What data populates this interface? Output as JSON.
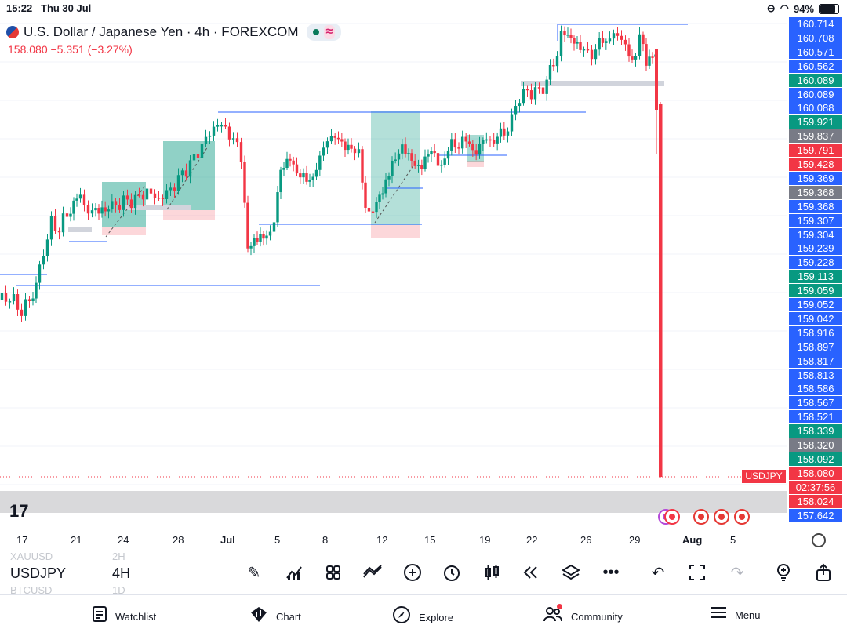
{
  "status_bar": {
    "time": "15:22",
    "date": "Thu 30 Jul",
    "battery": "94%",
    "battery_level": 0.94
  },
  "header": {
    "title": "U.S. Dollar / Japanese Yen · 4h · FOREXCOM",
    "price": "158.080",
    "change": "−5.351 (−3.27%)"
  },
  "colors": {
    "up": "#089981",
    "down": "#f23645",
    "line": "#2962ff",
    "axis_blue": "#2962ff",
    "axis_gray": "#787b86"
  },
  "price_axis": [
    {
      "label": "160.714",
      "color": "#2962ff"
    },
    {
      "label": "160.708",
      "color": "#2962ff"
    },
    {
      "label": "160.571",
      "color": "#2962ff"
    },
    {
      "label": "160.562",
      "color": "#2962ff"
    },
    {
      "label": "160.089",
      "color": "#089981"
    },
    {
      "label": "160.089",
      "color": "#2962ff"
    },
    {
      "label": "160.088",
      "color": "#2962ff"
    },
    {
      "label": "159.921",
      "color": "#089981"
    },
    {
      "label": "159.837",
      "color": "#787b86"
    },
    {
      "label": "159.791",
      "color": "#f23645"
    },
    {
      "label": "159.428",
      "color": "#f23645"
    },
    {
      "label": "159.369",
      "color": "#2962ff"
    },
    {
      "label": "159.368",
      "color": "#787b86"
    },
    {
      "label": "159.368",
      "color": "#2962ff"
    },
    {
      "label": "159.307",
      "color": "#2962ff"
    },
    {
      "label": "159.304",
      "color": "#2962ff"
    },
    {
      "label": "159.239",
      "color": "#2962ff"
    },
    {
      "label": "159.228",
      "color": "#2962ff"
    },
    {
      "label": "159.113",
      "color": "#089981"
    },
    {
      "label": "159.059",
      "color": "#089981"
    },
    {
      "label": "159.052",
      "color": "#2962ff"
    },
    {
      "label": "159.042",
      "color": "#2962ff"
    },
    {
      "label": "158.916",
      "color": "#2962ff"
    },
    {
      "label": "158.897",
      "color": "#2962ff"
    },
    {
      "label": "158.817",
      "color": "#2962ff"
    },
    {
      "label": "158.813",
      "color": "#2962ff"
    },
    {
      "label": "158.586",
      "color": "#2962ff"
    },
    {
      "label": "158.567",
      "color": "#2962ff"
    },
    {
      "label": "158.521",
      "color": "#2962ff"
    },
    {
      "label": "158.339",
      "color": "#089981"
    },
    {
      "label": "158.320",
      "color": "#787b86"
    },
    {
      "label": "158.092",
      "color": "#089981"
    },
    {
      "label": "158.080",
      "color": "#f23645"
    },
    {
      "label": "02:37:56",
      "color": "#f23645"
    },
    {
      "label": "158.024",
      "color": "#f23645"
    },
    {
      "label": "157.642",
      "color": "#2962ff"
    }
  ],
  "last_price_tag": "USDJPY",
  "time_axis": [
    "17",
    "21",
    "24",
    "28",
    "Jul",
    "5",
    "8",
    "12",
    "15",
    "19",
    "22",
    "26",
    "29",
    "Aug",
    "5"
  ],
  "toolbar": {
    "symbol_prev": "XAUUSD",
    "tf_prev": "2H",
    "symbol": "USDJPY",
    "timeframe": "4H",
    "symbol_next": "BTCUSD",
    "tf_next": "1D"
  },
  "tools": [
    "pen-icon",
    "indicators-icon",
    "layouts-icon",
    "compare-icon",
    "add-icon",
    "alert-icon",
    "candle-type-icon",
    "replay-icon",
    "layers-icon",
    "more-icon",
    "undo-icon",
    "fullscreen-icon",
    "redo-icon",
    "idea-icon",
    "share-icon"
  ],
  "nav": [
    {
      "label": "Watchlist",
      "icon": "watchlist-icon"
    },
    {
      "label": "Chart",
      "icon": "chart-icon"
    },
    {
      "label": "Explore",
      "icon": "explore-icon"
    },
    {
      "label": "Community",
      "icon": "community-icon"
    },
    {
      "label": "Menu",
      "icon": "menu-icon"
    }
  ]
}
